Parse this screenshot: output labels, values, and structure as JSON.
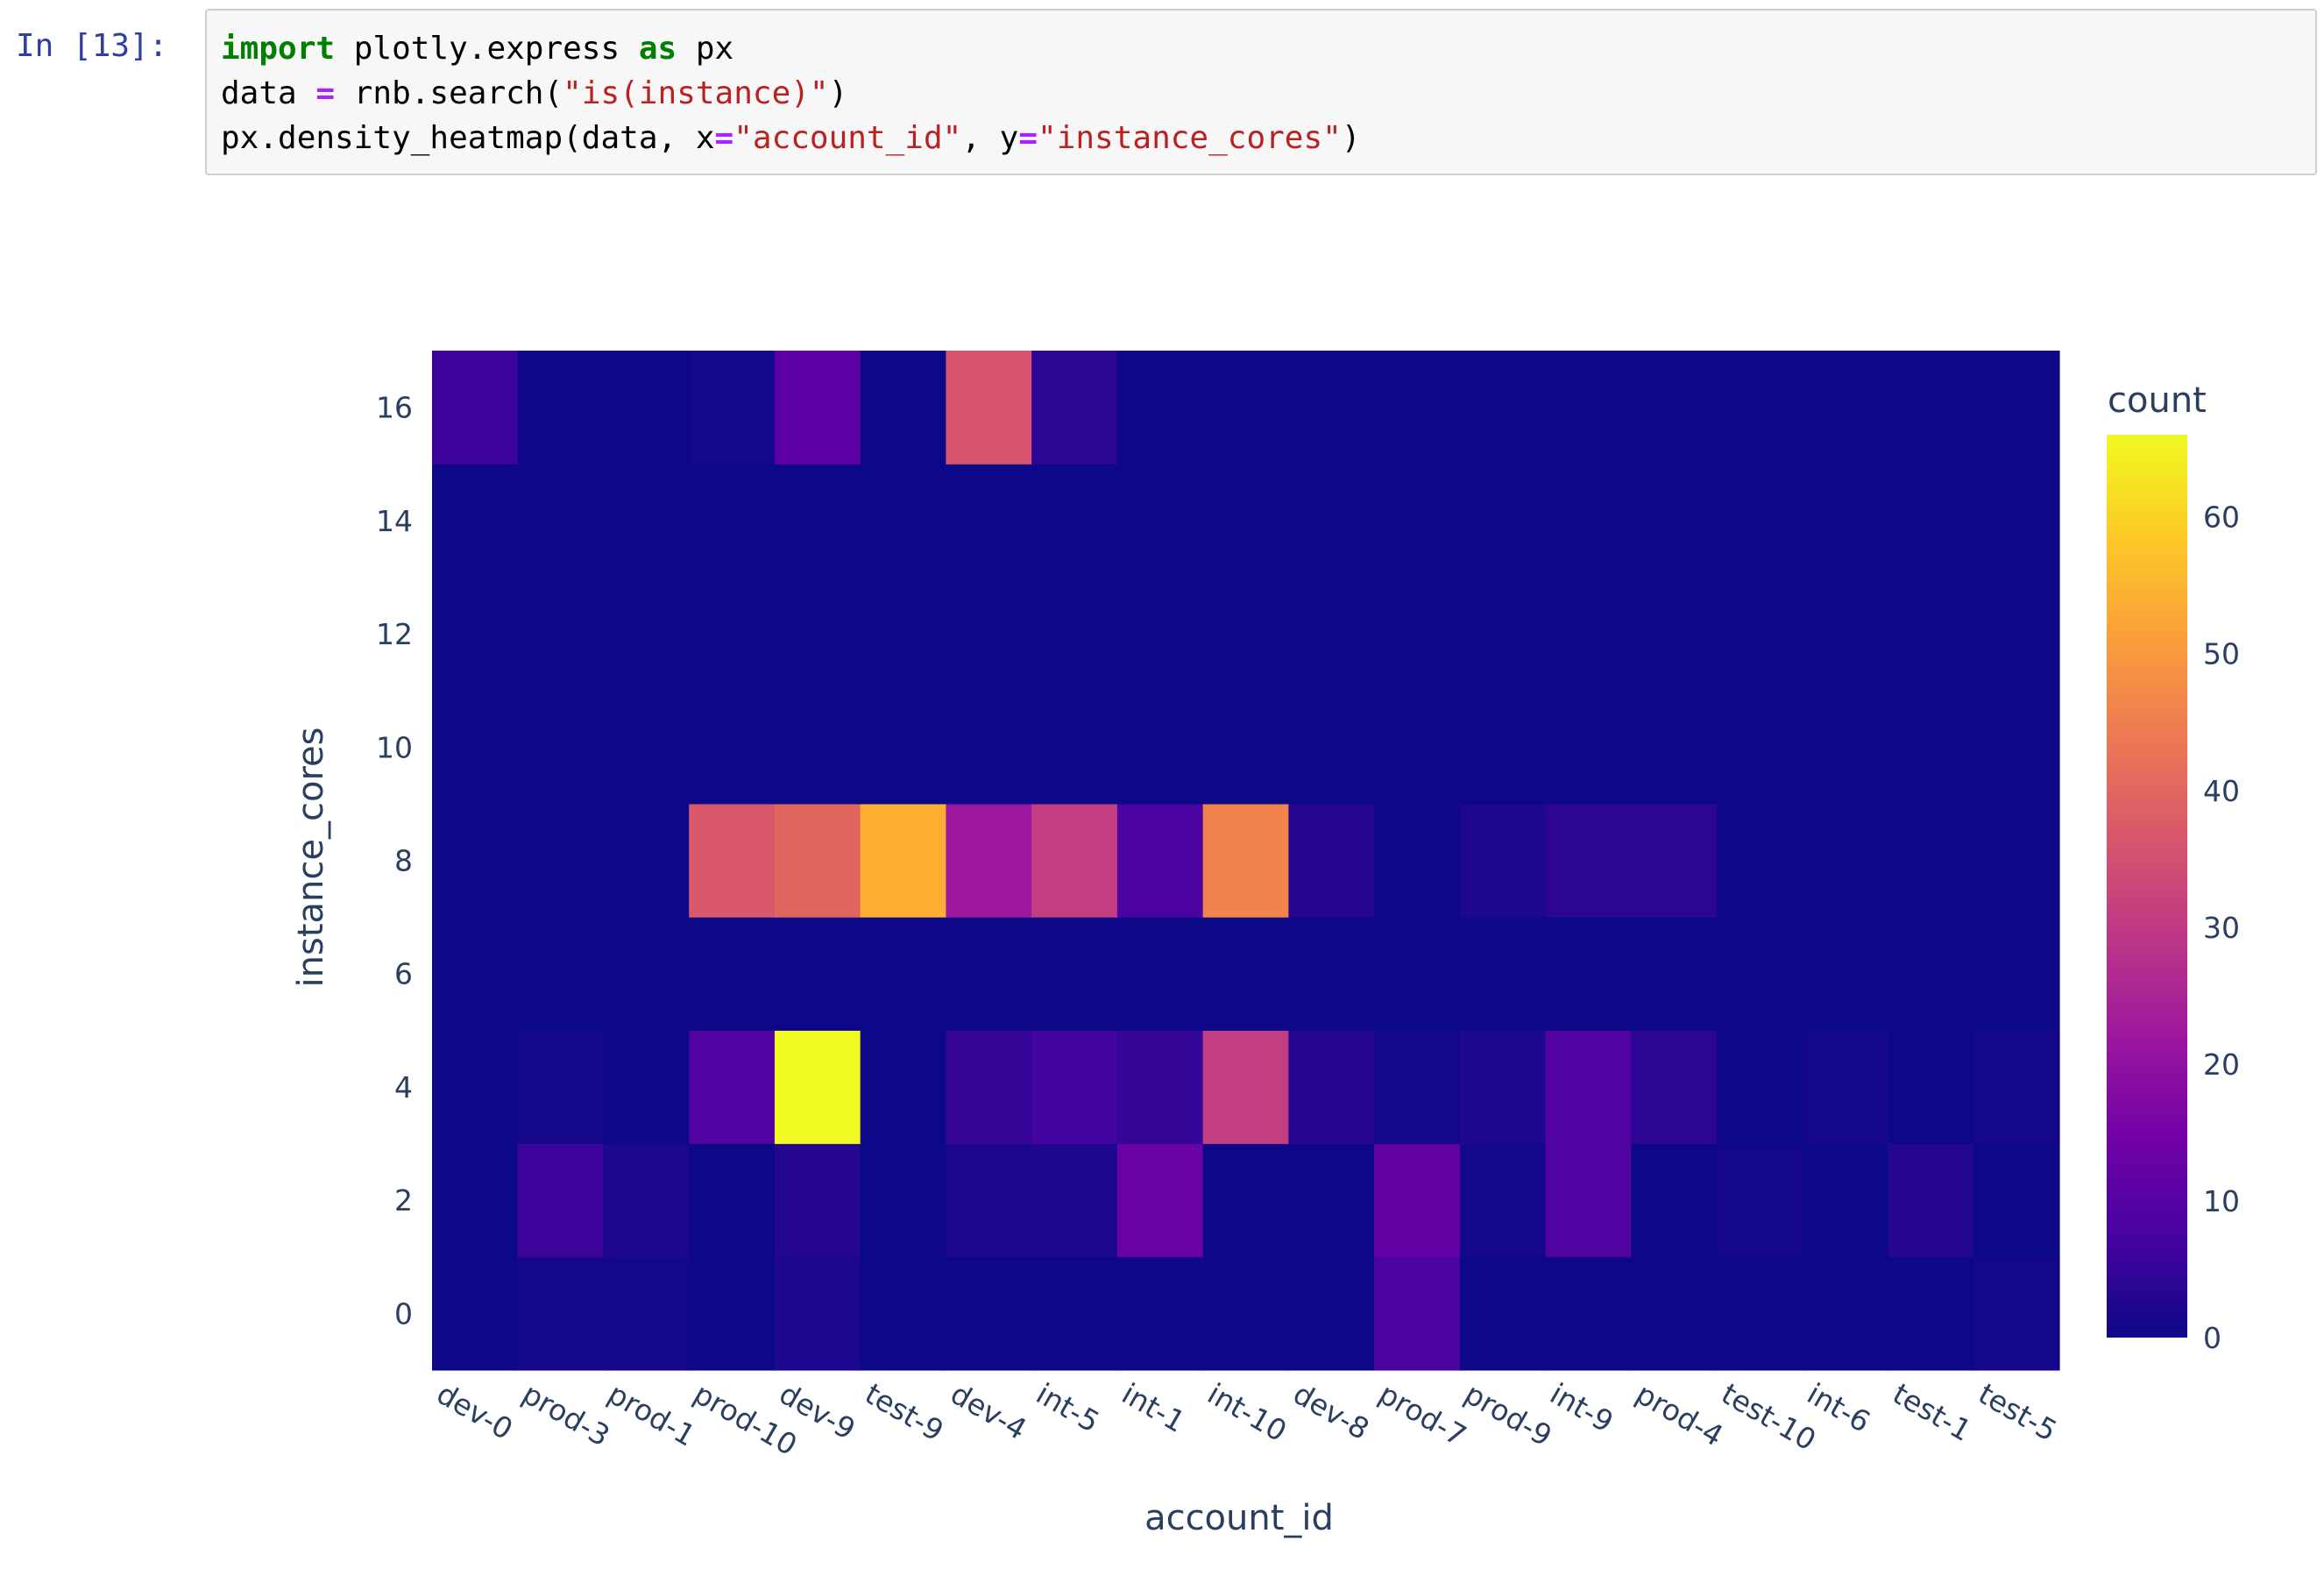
{
  "cell": {
    "prompt": "In [13]:",
    "lines": [
      [
        {
          "t": "import",
          "c": "kw"
        },
        {
          "t": " plotly.express ",
          "c": ""
        },
        {
          "t": "as",
          "c": "kw"
        },
        {
          "t": " px",
          "c": ""
        }
      ],
      [
        {
          "t": "data ",
          "c": ""
        },
        {
          "t": "=",
          "c": "op"
        },
        {
          "t": " rnb.search(",
          "c": ""
        },
        {
          "t": "\"is(instance)\"",
          "c": "str"
        },
        {
          "t": ")",
          "c": ""
        }
      ],
      [
        {
          "t": "px.density_heatmap(data, x",
          "c": ""
        },
        {
          "t": "=",
          "c": "op"
        },
        {
          "t": "\"account_id\"",
          "c": "str"
        },
        {
          "t": ", y",
          "c": ""
        },
        {
          "t": "=",
          "c": "op"
        },
        {
          "t": "\"instance_cores\"",
          "c": "str"
        },
        {
          "t": ")",
          "c": ""
        }
      ]
    ]
  },
  "chart_data": {
    "type": "heatmap",
    "title": "",
    "xlabel": "account_id",
    "ylabel": "instance_cores",
    "x_categories": [
      "dev-0",
      "prod-3",
      "prod-1",
      "prod-10",
      "dev-9",
      "test-9",
      "dev-4",
      "int-5",
      "int-1",
      "int-10",
      "dev-8",
      "prod-7",
      "prod-9",
      "int-9",
      "prod-4",
      "test-10",
      "int-6",
      "test-1",
      "test-5"
    ],
    "y_bins": [
      0,
      2,
      4,
      6,
      8,
      10,
      12,
      14,
      16
    ],
    "y_ticks": [
      0,
      2,
      4,
      6,
      8,
      10,
      12,
      14,
      16
    ],
    "ylim": [
      -1,
      17
    ],
    "z": [
      [
        0,
        1,
        1,
        0,
        2,
        0,
        0,
        0,
        0,
        0,
        0,
        8,
        0,
        0,
        0,
        0,
        0,
        0,
        1
      ],
      [
        0,
        6,
        2,
        0,
        3,
        0,
        2,
        2,
        13,
        0,
        0,
        12,
        1,
        9,
        0,
        1,
        0,
        3,
        0
      ],
      [
        0,
        1,
        0,
        9,
        66,
        0,
        5,
        7,
        5,
        31,
        3,
        1,
        2,
        9,
        4,
        0,
        1,
        0,
        1
      ],
      [
        0,
        0,
        0,
        0,
        0,
        0,
        0,
        0,
        0,
        0,
        0,
        0,
        0,
        0,
        0,
        0,
        0,
        0,
        0
      ],
      [
        0,
        0,
        0,
        37,
        40,
        54,
        22,
        31,
        8,
        46,
        3,
        0,
        2,
        4,
        4,
        0,
        0,
        0,
        0
      ],
      [
        0,
        0,
        0,
        0,
        0,
        0,
        0,
        0,
        0,
        0,
        0,
        0,
        0,
        0,
        0,
        0,
        0,
        0,
        0
      ],
      [
        0,
        0,
        0,
        0,
        0,
        0,
        0,
        0,
        0,
        0,
        0,
        0,
        0,
        0,
        0,
        0,
        0,
        0,
        0
      ],
      [
        0,
        0,
        0,
        0,
        0,
        0,
        0,
        0,
        0,
        0,
        0,
        0,
        0,
        0,
        0,
        0,
        0,
        0,
        0
      ],
      [
        6,
        0,
        0,
        1,
        11,
        0,
        36,
        4,
        0,
        0,
        0,
        0,
        0,
        0,
        0,
        0,
        0,
        0,
        0
      ]
    ],
    "colorbar": {
      "title": "count",
      "ticks": [
        0,
        10,
        20,
        30,
        40,
        50,
        60
      ],
      "range": [
        0,
        66
      ],
      "colorscale": [
        "#0d0887",
        "#46039f",
        "#7201a8",
        "#9c179e",
        "#bd3786",
        "#d8576b",
        "#ed7953",
        "#fb9f3a",
        "#fdca26",
        "#f0f921"
      ]
    }
  }
}
